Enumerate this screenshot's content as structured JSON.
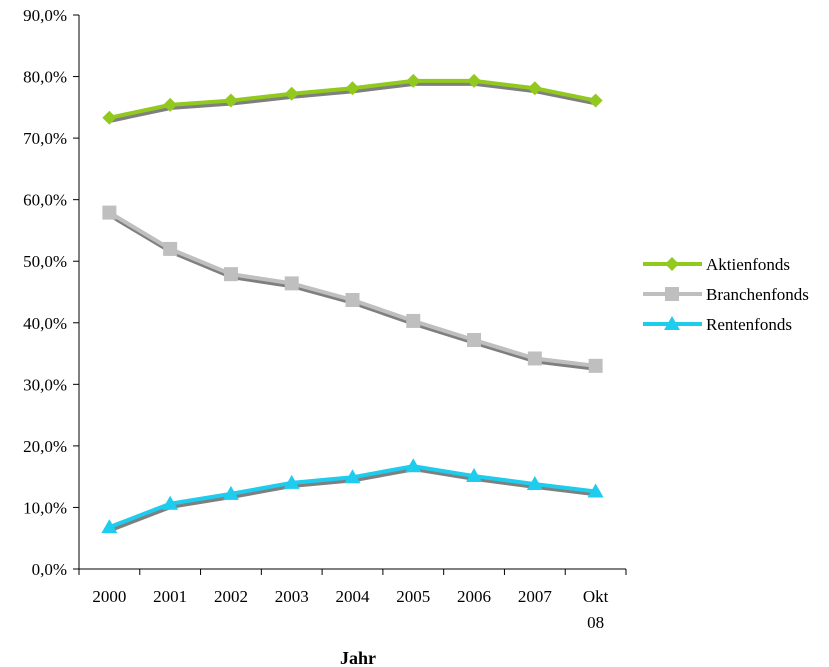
{
  "chart_data": {
    "type": "line",
    "title": "",
    "xlabel": "Jahr",
    "ylabel": "",
    "categories": [
      "2000",
      "2001",
      "2002",
      "2003",
      "2004",
      "2005",
      "2006",
      "2007",
      "Okt 08"
    ],
    "category_lines": [
      [
        "2000"
      ],
      [
        "2001"
      ],
      [
        "2002"
      ],
      [
        "2003"
      ],
      [
        "2004"
      ],
      [
        "2005"
      ],
      [
        "2006"
      ],
      [
        "2007"
      ],
      [
        "Okt",
        "08"
      ]
    ],
    "y_ticks": [
      "0,0%",
      "10,0%",
      "20,0%",
      "30,0%",
      "40,0%",
      "50,0%",
      "60,0%",
      "70,0%",
      "80,0%",
      "90,0%"
    ],
    "ylim": [
      0,
      90
    ],
    "grid": false,
    "legend_position": "right",
    "series": [
      {
        "name": "Aktienfonds",
        "marker": "diamond",
        "color": "#92C91E",
        "values": [
          73.3,
          75.4,
          76.1,
          77.2,
          78.1,
          79.3,
          79.3,
          78.1,
          76.1
        ]
      },
      {
        "name": "Branchenfonds",
        "marker": "square",
        "color": "#BFBFBF",
        "values": [
          57.9,
          52.0,
          47.9,
          46.4,
          43.7,
          40.3,
          37.2,
          34.2,
          33.0
        ]
      },
      {
        "name": "Rentenfonds",
        "marker": "triangle",
        "color": "#1ECCEE",
        "values": [
          6.8,
          10.6,
          12.2,
          14.0,
          14.9,
          16.7,
          15.1,
          13.8,
          12.6
        ]
      }
    ]
  }
}
